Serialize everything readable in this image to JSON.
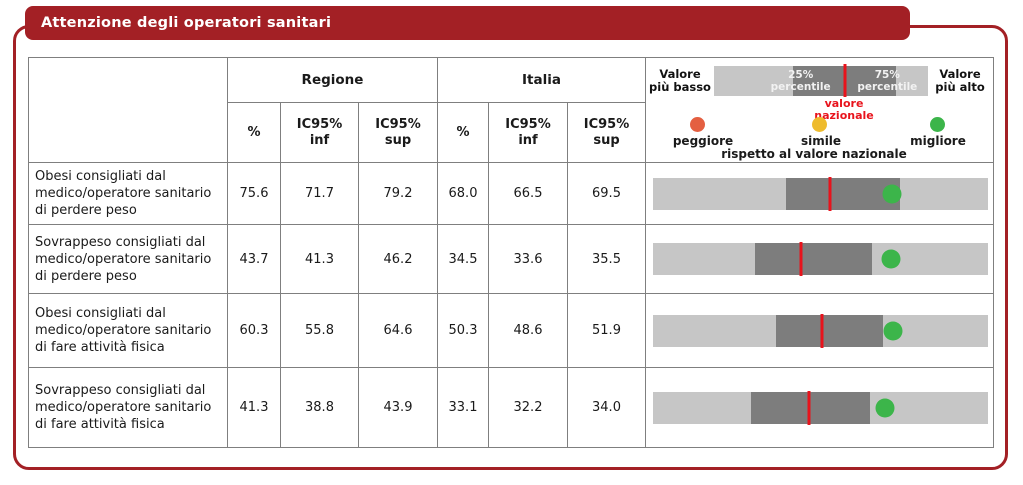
{
  "title": "Attenzione degli operatori sanitari",
  "colors": {
    "frame_red": "#a32025",
    "bar_light_gray": "#c6c6c6",
    "bar_dark_gray": "#7d7d7d",
    "national_line_red": "#e8131c",
    "worse_dot": "#e45f41",
    "similar_dot": "#eebb2d",
    "better_dot": "#3cb54a"
  },
  "legend": {
    "left_label": "Valore più basso",
    "right_label": "Valore più alto",
    "p25_label": "25% percentile",
    "p75_label": "75% percentile",
    "national_label": "valore nazionale",
    "dots_caption": "rispetto al valore nazionale",
    "dots": [
      {
        "label": "peggiore",
        "color": "#e45f41"
      },
      {
        "label": "simile",
        "color": "#eebb2d"
      },
      {
        "label": "migliore",
        "color": "#3cb54a"
      }
    ],
    "bar": {
      "q1_pct": 36.7,
      "q3_pct": 85.1,
      "national_pct": 61
    }
  },
  "table": {
    "group_headers": [
      "Regione",
      "Italia"
    ],
    "sub_headers": [
      "%",
      "IC95% inf",
      "IC95% sup",
      "%",
      "IC95% inf",
      "IC95% sup"
    ],
    "rows": [
      {
        "label": "Obesi consigliati dal medico/operatore sanitario di perdere peso",
        "regione": {
          "pct": "75.6",
          "ic_inf": "71.7",
          "ic_sup": "79.2"
        },
        "italia": {
          "pct": "68.0",
          "ic_inf": "66.5",
          "ic_sup": "69.5"
        },
        "bar": {
          "q1_pct": 39.6,
          "q3_pct": 73.8,
          "national_pct": 52.8,
          "dot_pct": 71.3,
          "dot_color": "#3cb54a",
          "dot_meaning": "migliore"
        }
      },
      {
        "label": "Sovrappeso consigliati dal medico/operatore sanitario di perdere peso",
        "regione": {
          "pct": "43.7",
          "ic_inf": "41.3",
          "ic_sup": "46.2"
        },
        "italia": {
          "pct": "34.5",
          "ic_inf": "33.6",
          "ic_sup": "35.5"
        },
        "bar": {
          "q1_pct": 30.5,
          "q3_pct": 65.4,
          "national_pct": 44.3,
          "dot_pct": 71.1,
          "dot_color": "#3cb54a",
          "dot_meaning": "migliore"
        }
      },
      {
        "label": "Obesi consigliati dal medico/operatore sanitario di fare attività fisica",
        "regione": {
          "pct": "60.3",
          "ic_inf": "55.8",
          "ic_sup": "64.6"
        },
        "italia": {
          "pct": "50.3",
          "ic_inf": "48.6",
          "ic_sup": "51.9"
        },
        "bar": {
          "q1_pct": 36.6,
          "q3_pct": 68.7,
          "national_pct": 50.5,
          "dot_pct": 71.7,
          "dot_color": "#3cb54a",
          "dot_meaning": "migliore"
        }
      },
      {
        "label": "Sovrappeso consigliati dal medico/operatore sanitario di fare attività fisica",
        "regione": {
          "pct": "41.3",
          "ic_inf": "38.8",
          "ic_sup": "43.9"
        },
        "italia": {
          "pct": "33.1",
          "ic_inf": "32.2",
          "ic_sup": "34.0"
        },
        "bar": {
          "q1_pct": 29.2,
          "q3_pct": 64.9,
          "national_pct": 46.5,
          "dot_pct": 69.3,
          "dot_color": "#3cb54a",
          "dot_meaning": "migliore"
        }
      }
    ]
  }
}
